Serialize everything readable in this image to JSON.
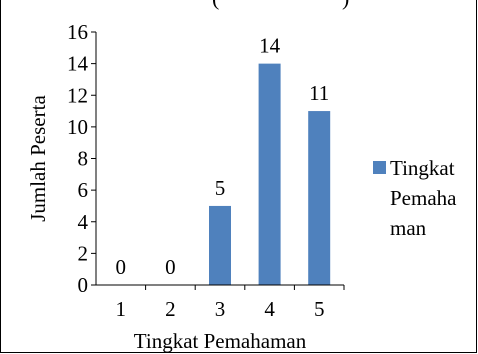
{
  "chart_data": {
    "type": "bar",
    "title_fragment": "(",
    "title_fragment_right": ")",
    "xlabel": "Tingkat Pemahaman",
    "ylabel": "Jumlah Peserta",
    "categories": [
      "1",
      "2",
      "3",
      "4",
      "5"
    ],
    "series": [
      {
        "name": "Tingkat Pemahaman",
        "values": [
          0,
          0,
          5,
          14,
          11
        ]
      }
    ],
    "data_labels": [
      "0",
      "0",
      "5",
      "14",
      "11"
    ],
    "ylim": [
      0,
      16
    ],
    "yticks": [
      "0",
      "2",
      "4",
      "6",
      "8",
      "10",
      "12",
      "14",
      "16"
    ],
    "grid": false,
    "legend_position": "right",
    "legend_lines": [
      "Tingkat",
      "Pemaha",
      "man"
    ],
    "colors": {
      "bar": "#4f81bd",
      "axis": "#000000"
    }
  }
}
